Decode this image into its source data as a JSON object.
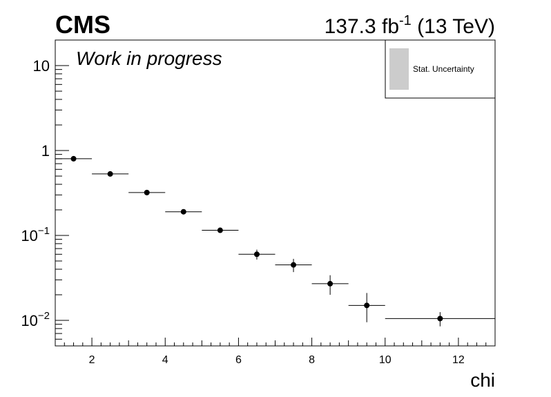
{
  "header": {
    "experiment": "CMS",
    "lumi_value": "137.3 fb",
    "lumi_exp": "-1",
    "energy": "(13 TeV)"
  },
  "annotation": "Work in progress",
  "legend": {
    "entry": "Stat. Uncertainty",
    "placement": "top-right",
    "swatch_color": "#cccccc"
  },
  "chart_data": {
    "type": "scatter",
    "xlabel": "chi",
    "ylabel": "",
    "xlim": [
      1,
      13
    ],
    "ylim": [
      0.005,
      20
    ],
    "yscale": "log",
    "grid": false,
    "x_ticks": [
      2,
      4,
      6,
      8,
      10,
      12
    ],
    "y_ticks": [
      {
        "value": 10,
        "base": "10",
        "exp": ""
      },
      {
        "value": 1,
        "base": "1",
        "exp": ""
      },
      {
        "value": 0.1,
        "base": "10",
        "exp": "−1"
      },
      {
        "value": 0.01,
        "base": "10",
        "exp": "−2"
      }
    ],
    "points": [
      {
        "x": 1.5,
        "xlow": 1,
        "xhigh": 2,
        "y": 0.8,
        "ylow": 0.78,
        "yhigh": 0.82
      },
      {
        "x": 2.5,
        "xlow": 2,
        "xhigh": 3,
        "y": 0.53,
        "ylow": 0.52,
        "yhigh": 0.54
      },
      {
        "x": 3.5,
        "xlow": 3,
        "xhigh": 4,
        "y": 0.32,
        "ylow": 0.31,
        "yhigh": 0.33
      },
      {
        "x": 4.5,
        "xlow": 4,
        "xhigh": 5,
        "y": 0.19,
        "ylow": 0.183,
        "yhigh": 0.197
      },
      {
        "x": 5.5,
        "xlow": 5,
        "xhigh": 6,
        "y": 0.115,
        "ylow": 0.109,
        "yhigh": 0.121
      },
      {
        "x": 6.5,
        "xlow": 6,
        "xhigh": 7,
        "y": 0.06,
        "ylow": 0.052,
        "yhigh": 0.068
      },
      {
        "x": 7.5,
        "xlow": 7,
        "xhigh": 8,
        "y": 0.045,
        "ylow": 0.037,
        "yhigh": 0.053
      },
      {
        "x": 8.5,
        "xlow": 8,
        "xhigh": 9,
        "y": 0.027,
        "ylow": 0.02,
        "yhigh": 0.034
      },
      {
        "x": 9.5,
        "xlow": 9,
        "xhigh": 10,
        "y": 0.015,
        "ylow": 0.0095,
        "yhigh": 0.021
      },
      {
        "x": 11.5,
        "xlow": 10,
        "xhigh": 13,
        "y": 0.0105,
        "ylow": 0.0085,
        "yhigh": 0.0125
      }
    ]
  }
}
